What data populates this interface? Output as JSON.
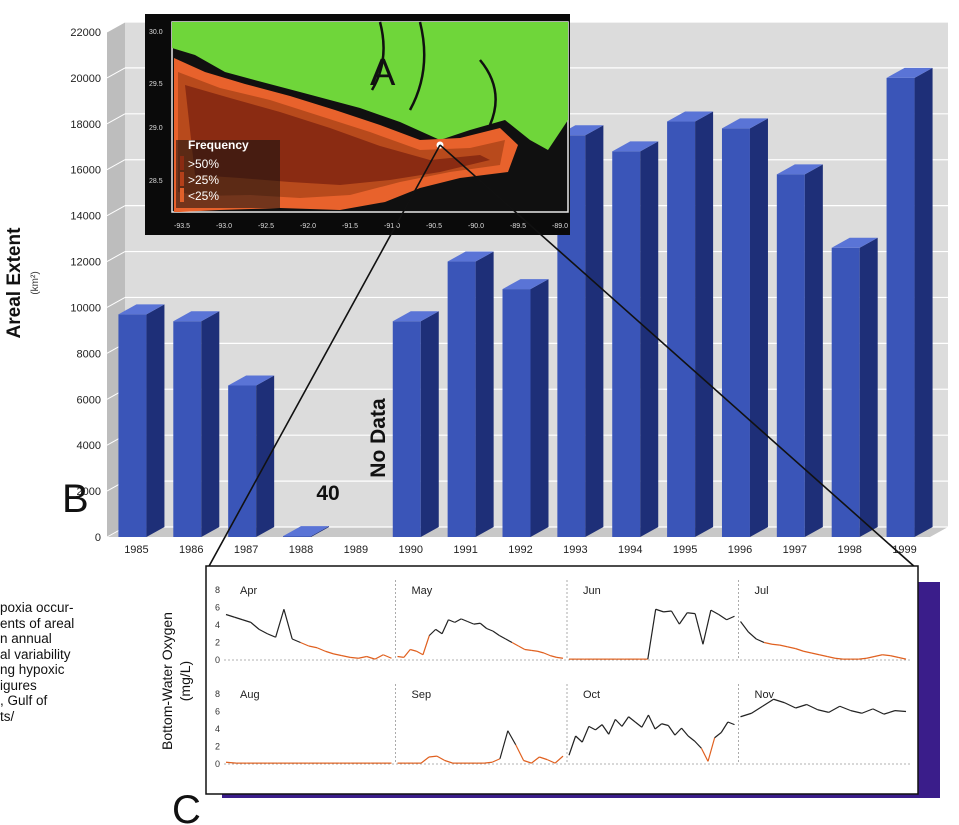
{
  "panel_letters": {
    "a": "A",
    "b": "B",
    "c": "C"
  },
  "inset_map": {
    "legend_title": "Frequency",
    "legend_items": [
      {
        "label": ">50%",
        "color": "#8a2b12"
      },
      {
        "label": ">25%",
        "color": "#b3401a"
      },
      {
        "label": "<25%",
        "color": "#e0602a"
      }
    ],
    "lat_ticks": [
      "30.0",
      "29.5",
      "29.0",
      "28.5"
    ],
    "lon_ticks": [
      "-93.5",
      "-93.0",
      "-92.5",
      "-92.0",
      "-91.5",
      "-91.0",
      "-90.5",
      "-90.0",
      "-89.5",
      "-89.0"
    ],
    "colors": {
      "land": "#6fd63a",
      "water": "#101010",
      "high": "#8a2b12",
      "mid": "#b84a1c",
      "low": "#e8622c"
    }
  },
  "caption_fragment": [
    "poxia occur-",
    "ents of areal",
    "n annual",
    "al variability",
    "ng hypoxic",
    "igures",
    ", Gulf of",
    "ts/"
  ],
  "chart_data": [
    {
      "type": "bar",
      "ylabel": "Areal Extent",
      "yunit": "(km²)",
      "categories": [
        "1985",
        "1986",
        "1987",
        "1988",
        "1989",
        "1990",
        "1991",
        "1992",
        "1993",
        "1994",
        "1995",
        "1996",
        "1997",
        "1998",
        "1999"
      ],
      "values": [
        9700,
        9400,
        6600,
        40,
        null,
        9400,
        12000,
        10800,
        17500,
        16800,
        18100,
        17800,
        15800,
        12600,
        20000
      ],
      "ylim": [
        0,
        22000
      ],
      "yticks": [
        0,
        2000,
        4000,
        6000,
        8000,
        10000,
        12000,
        14000,
        16000,
        18000,
        20000,
        22000
      ],
      "ytick_labels": [
        "0",
        "2000",
        "4000",
        "6000",
        "8000",
        "10000",
        "12000",
        "14000",
        "16000",
        "18000",
        "20000",
        "22000"
      ],
      "annotations": {
        "value_1988": "40",
        "no_data": "No Data"
      },
      "grid": true,
      "colors": {
        "bar_front": "#3a55b8",
        "bar_side": "#1e2f78",
        "bar_top": "#5a74d6",
        "wall": "#dcdcdc"
      }
    },
    {
      "type": "line",
      "ylabel": "Bottom-Water Oxygen",
      "yunit": "(mg/L)",
      "yticks": [
        "0",
        "2",
        "4",
        "6",
        "8"
      ],
      "ylim": [
        0,
        8
      ],
      "rows": [
        {
          "months": [
            "Apr",
            "May",
            "Jun",
            "Jul"
          ],
          "series": [
            [
              5.2,
              4.9,
              4.6,
              4.3,
              3.5,
              3.0,
              2.6,
              5.8,
              2.4,
              2.0,
              1.6,
              1.4,
              1.0,
              0.7,
              0.5,
              0.3,
              0.2,
              0.4,
              0.1,
              0.6,
              0.2
            ],
            [
              0.4,
              0.3,
              1.2,
              1.0,
              0.6,
              2.8,
              3.5,
              3.0,
              4.6,
              4.3,
              4.7,
              4.4,
              4.1,
              4.2,
              3.6,
              3.3,
              2.8,
              2.4,
              2.0,
              1.6,
              1.2,
              1.1,
              1.0,
              0.8,
              0.5,
              0.3,
              0.2
            ],
            [
              0.1,
              0.1,
              0.1,
              0.1,
              0.1,
              0.1,
              0.1,
              0.1,
              0.1,
              0.1,
              0.1,
              5.8,
              5.5,
              5.6,
              4.1,
              5.4,
              5.3,
              1.8,
              5.7,
              5.2,
              4.6,
              5.0
            ],
            [
              4.4,
              3.2,
              2.4,
              2.0,
              1.8,
              1.7,
              1.5,
              1.3,
              1.0,
              0.8,
              0.6,
              0.4,
              0.2,
              0.1,
              0.1,
              0.1,
              0.2,
              0.4,
              0.6,
              0.5,
              0.3,
              0.1
            ]
          ]
        },
        {
          "months": [
            "Aug",
            "Sep",
            "Oct",
            "Nov"
          ],
          "series": [
            [
              0.2,
              0.1,
              0.1,
              0.1,
              0.1,
              0.1,
              0.1,
              0.1,
              0.1,
              0.1,
              0.1,
              0.1,
              0.1,
              0.1,
              0.1,
              0.1,
              0.1
            ],
            [
              0.1,
              0.1,
              0.1,
              0.1,
              0.8,
              0.9,
              0.4,
              0.1,
              0.1,
              0.1,
              0.1,
              0.1,
              0.2,
              0.6,
              3.8,
              2.2,
              0.4,
              0.1,
              0.8,
              0.5,
              0.1,
              0.9
            ],
            [
              1.0,
              3.2,
              2.5,
              4.3,
              3.9,
              4.5,
              3.4,
              5.1,
              4.3,
              5.4,
              4.8,
              4.2,
              5.6,
              4.0,
              4.6,
              4.4,
              3.3,
              4.1,
              3.2,
              2.6,
              1.8,
              0.3,
              3.0,
              3.6,
              4.8,
              4.5
            ],
            [
              5.4,
              5.8,
              6.6,
              7.4,
              7.0,
              6.4,
              6.8,
              6.2,
              5.9,
              6.6,
              6.1,
              5.8,
              6.3,
              5.7,
              6.1,
              6.0
            ]
          ]
        }
      ],
      "colors": {
        "low": "#e0601f",
        "high": "#222222",
        "shadow": "#3a1d8a"
      }
    }
  ]
}
